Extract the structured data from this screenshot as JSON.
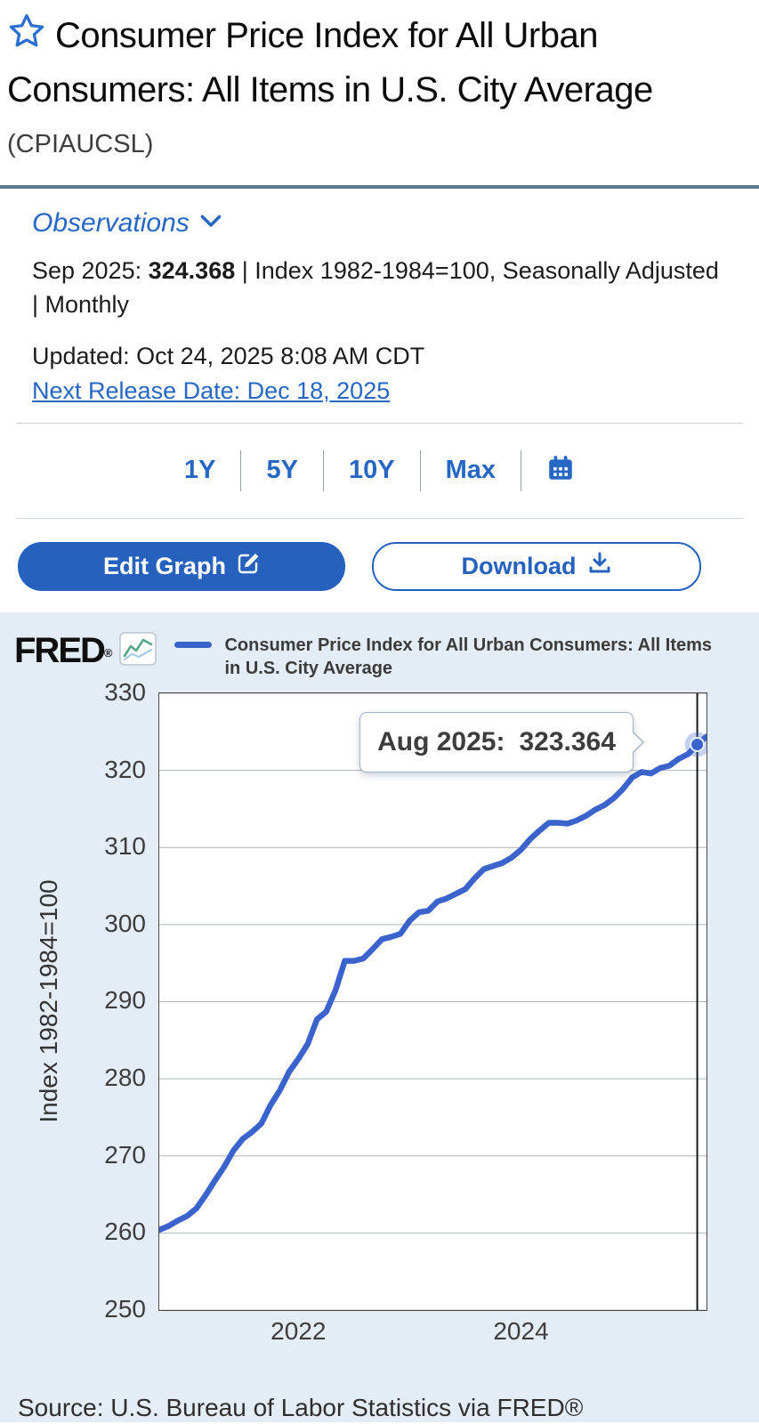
{
  "header": {
    "title": "Consumer Price Index for All Urban Consumers: All Items in U.S. City Average",
    "series_id": "(CPIAUCSL)"
  },
  "observations": {
    "toggle_label": "Observations",
    "date_label": "Sep 2025: ",
    "value": "324.368",
    "meta_suffix": " | Index 1982-1984=100, Seasonally Adjusted | Monthly",
    "updated": "Updated: Oct 24, 2025 8:08 AM CDT",
    "next_release": "Next Release Date: Dec 18, 2025"
  },
  "range_selector": {
    "options": [
      "1Y",
      "5Y",
      "10Y",
      "Max"
    ]
  },
  "actions": {
    "edit_graph": "Edit Graph",
    "download": "Download"
  },
  "chart": {
    "brand": "FRED",
    "brand_mark": "®",
    "legend": "Consumer Price Index for All Urban Consumers: All Items in U.S. City Average",
    "tooltip": {
      "label": "Aug 2025:",
      "value": "323.364"
    },
    "source": "Source: U.S. Bureau of Labor Statistics via FRED®"
  },
  "colors": {
    "accent_blue": "#2667c4",
    "line_blue": "#3a63cc",
    "chart_background": "#e4ecf6",
    "title_divider": "#5d7b8a"
  },
  "chart_data": {
    "type": "line",
    "title": "Consumer Price Index for All Urban Consumers: All Items in U.S. City Average",
    "series_name": "CPIAUCSL",
    "xlabel": "",
    "ylabel": "Index 1982-1984=100",
    "ylim": [
      250,
      330
    ],
    "yticks": [
      330,
      320,
      310,
      300,
      290,
      280,
      270,
      260,
      250
    ],
    "xticks": [
      {
        "label": "2022",
        "pos": 0.2542
      },
      {
        "label": "2024",
        "pos": 0.661
      }
    ],
    "grid": true,
    "legend_position": "top",
    "line_color": "#3a63cc",
    "cursor": {
      "index": 58,
      "x_label": "Aug 2025",
      "value": 323.364
    },
    "x": [
      "2020-10",
      "2020-11",
      "2020-12",
      "2021-01",
      "2021-02",
      "2021-03",
      "2021-04",
      "2021-05",
      "2021-06",
      "2021-07",
      "2021-08",
      "2021-09",
      "2021-10",
      "2021-11",
      "2021-12",
      "2022-01",
      "2022-02",
      "2022-03",
      "2022-04",
      "2022-05",
      "2022-06",
      "2022-07",
      "2022-08",
      "2022-09",
      "2022-10",
      "2022-11",
      "2022-12",
      "2023-01",
      "2023-02",
      "2023-03",
      "2023-04",
      "2023-05",
      "2023-06",
      "2023-07",
      "2023-08",
      "2023-09",
      "2023-10",
      "2023-11",
      "2023-12",
      "2024-01",
      "2024-02",
      "2024-03",
      "2024-04",
      "2024-05",
      "2024-06",
      "2024-07",
      "2024-08",
      "2024-09",
      "2024-10",
      "2024-11",
      "2024-12",
      "2025-01",
      "2025-02",
      "2025-03",
      "2025-04",
      "2025-05",
      "2025-06",
      "2025-07",
      "2025-08",
      "2025-09"
    ],
    "values": [
      260.4,
      260.9,
      261.6,
      262.2,
      263.2,
      264.9,
      266.8,
      268.6,
      270.7,
      272.2,
      273.1,
      274.2,
      276.6,
      278.5,
      280.9,
      282.6,
      284.5,
      287.7,
      288.7,
      291.5,
      295.3,
      295.3,
      295.6,
      296.8,
      298.1,
      298.4,
      298.8,
      300.5,
      301.6,
      301.8,
      303.0,
      303.4,
      304.0,
      304.6,
      306.0,
      307.2,
      307.6,
      308.0,
      308.7,
      309.7,
      311.1,
      312.2,
      313.2,
      313.2,
      313.1,
      313.5,
      314.1,
      314.9,
      315.5,
      316.4,
      317.6,
      319.1,
      319.8,
      319.6,
      320.3,
      320.6,
      321.5,
      322.1,
      323.364,
      324.368
    ]
  }
}
